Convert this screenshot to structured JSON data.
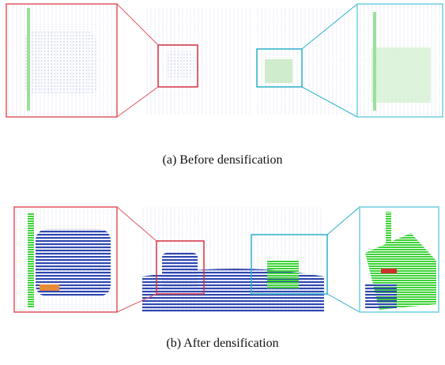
{
  "figure": {
    "panels": [
      {
        "caption": "(a) Before densification"
      },
      {
        "caption": "(b) After densification"
      }
    ]
  }
}
